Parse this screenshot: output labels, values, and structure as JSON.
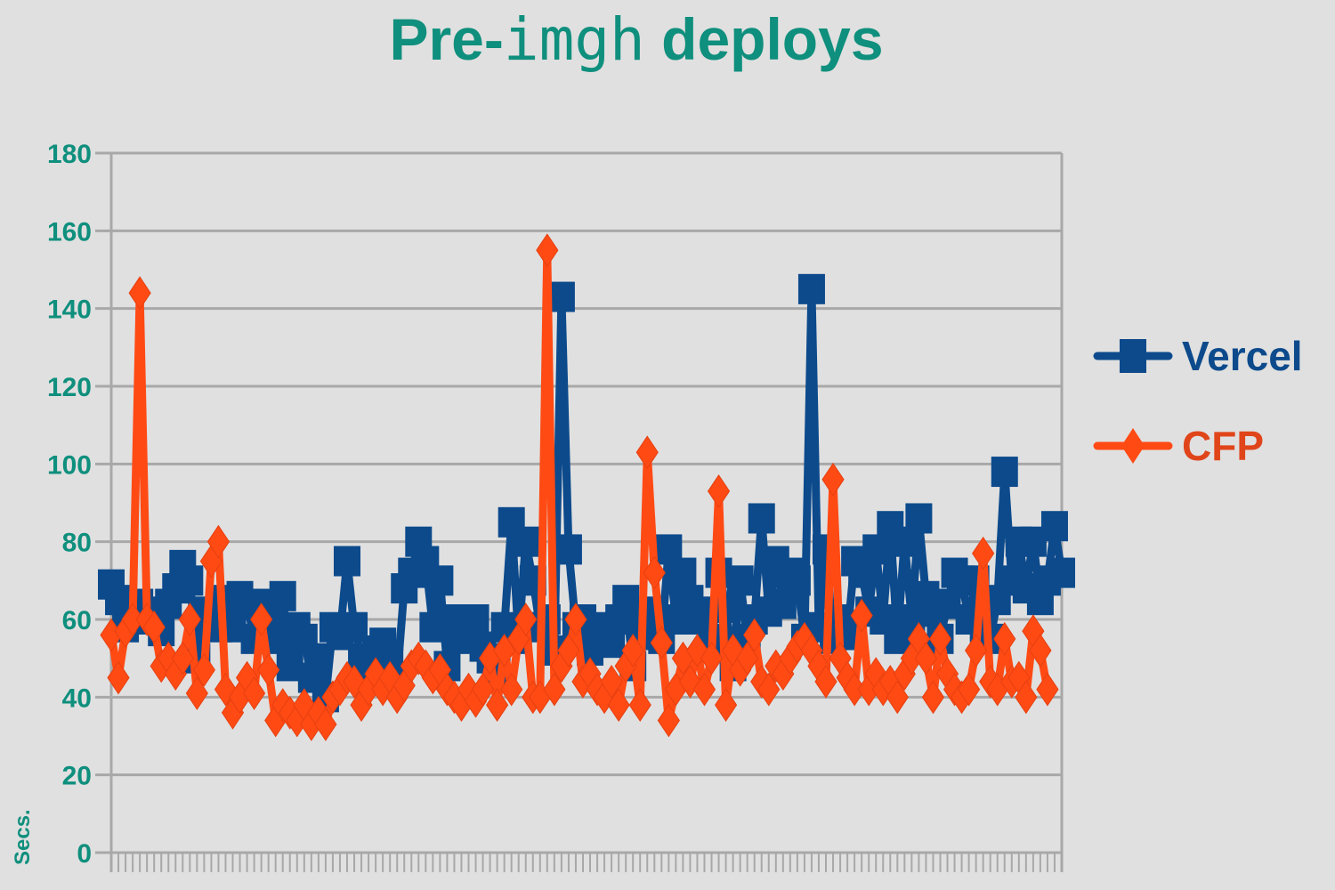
{
  "title": {
    "prefix": "Pre-",
    "code": "imgh",
    "suffix": " deploys"
  },
  "colors": {
    "background": "#e0e0e0",
    "grid": "#a8a8a8",
    "accent": "#0f8f7d",
    "vercel": "#0c4a8c",
    "cfp": "#ff4a14",
    "cfp_text": "#e0451a"
  },
  "chart_data": {
    "type": "line",
    "title": "Pre-imgh deploys",
    "xlabel": "",
    "ylabel": "Secs.",
    "ylim": [
      0,
      180
    ],
    "yticks": [
      0,
      20,
      40,
      60,
      80,
      100,
      120,
      140,
      160,
      180
    ],
    "grid": true,
    "legend": "right",
    "series": [
      {
        "name": "Vercel",
        "marker": "square",
        "values": [
          69,
          65,
          58,
          61,
          64,
          60,
          62,
          57,
          64,
          68,
          74,
          70,
          50,
          62,
          60,
          58,
          65,
          58,
          66,
          64,
          55,
          60,
          64,
          55,
          66,
          48,
          58,
          55,
          45,
          50,
          40,
          58,
          56,
          75,
          58,
          50,
          46,
          52,
          54,
          50,
          45,
          68,
          72,
          80,
          75,
          58,
          70,
          48,
          60,
          55,
          56,
          60,
          53,
          50,
          46,
          58,
          85,
          55,
          80,
          70,
          58,
          60,
          52,
          143,
          78,
          58,
          60,
          52,
          55,
          58,
          54,
          60,
          65,
          48,
          60,
          56,
          62,
          55,
          78,
          60,
          72,
          65,
          60,
          62,
          55,
          72,
          63,
          48,
          70,
          55,
          60,
          86,
          62,
          75,
          64,
          72,
          70,
          55,
          145,
          58,
          78,
          55,
          60,
          56,
          75,
          72,
          62,
          78,
          60,
          84,
          55,
          80,
          60,
          86,
          66,
          62,
          55,
          64,
          72,
          70,
          60,
          70,
          58,
          55,
          65,
          98,
          70,
          80,
          68,
          80,
          65,
          70,
          84,
          72
        ]
      },
      {
        "name": "CFP",
        "marker": "diamond",
        "values": [
          56,
          45,
          57,
          60,
          144,
          60,
          58,
          48,
          50,
          46,
          50,
          60,
          41,
          47,
          75,
          80,
          42,
          36,
          40,
          45,
          41,
          60,
          47,
          34,
          38,
          36,
          34,
          38,
          33,
          36,
          33,
          40,
          42,
          45,
          44,
          38,
          42,
          46,
          42,
          45,
          40,
          43,
          48,
          50,
          48,
          45,
          47,
          42,
          40,
          38,
          42,
          39,
          42,
          50,
          38,
          52,
          42,
          55,
          60,
          40,
          40,
          155,
          42,
          48,
          52,
          60,
          44,
          46,
          42,
          40,
          44,
          38,
          48,
          52,
          38,
          103,
          72,
          54,
          34,
          42,
          50,
          44,
          52,
          42,
          50,
          93,
          38,
          52,
          47,
          50,
          56,
          44,
          42,
          48,
          46,
          50,
          53,
          55,
          52,
          48,
          44,
          96,
          50,
          45,
          42,
          61,
          42,
          46,
          42,
          44,
          40,
          46,
          50,
          55,
          50,
          40,
          55,
          46,
          42,
          40,
          42,
          52,
          77,
          44,
          42,
          55,
          44,
          45,
          40,
          57,
          52,
          42
        ]
      }
    ]
  }
}
